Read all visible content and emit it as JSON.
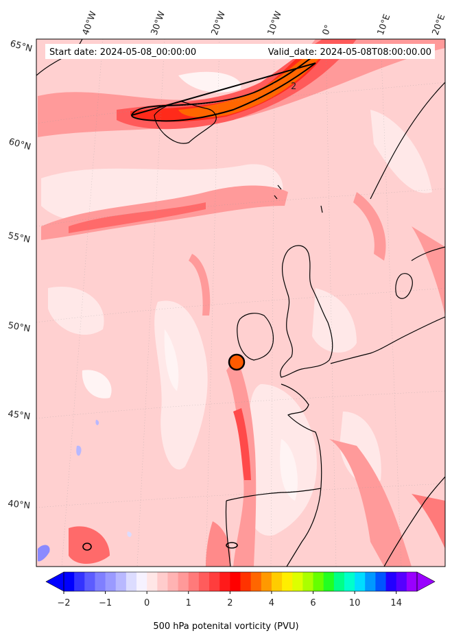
{
  "header": {
    "start_date": "Start date: 2024-05-08_00:00:00",
    "valid_date": "Valid_date: 2024-05-08T08:00:00.00"
  },
  "longitude_labels": [
    "40°W",
    "30°W",
    "20°W",
    "10°W",
    "0°",
    "10°E",
    "20°E"
  ],
  "latitude_labels": [
    "65°N",
    "60°N",
    "55°N",
    "50°N",
    "45°N",
    "40°N"
  ],
  "contour_label": "2",
  "colorbar": {
    "title": "500 hPa potenital vorticity (PVU)",
    "ticks": [
      "−2",
      "−1",
      "0",
      "1",
      "2",
      "4",
      "6",
      "10",
      "14"
    ],
    "colors": [
      "#0000ff",
      "#3333ff",
      "#5c5cff",
      "#7f7fff",
      "#9a9aff",
      "#b8b8ff",
      "#dcdcff",
      "#f6f2ff",
      "#ffe6e6",
      "#ffcccc",
      "#ffb3b3",
      "#ff9999",
      "#ff7a7a",
      "#ff5c5c",
      "#ff3d3d",
      "#ff1a1a",
      "#ff0000",
      "#ff3300",
      "#ff6600",
      "#ff9900",
      "#ffcc00",
      "#ffee00",
      "#ddff00",
      "#aaff00",
      "#66ff00",
      "#22ff22",
      "#00ff88",
      "#00ffcc",
      "#00ddff",
      "#0099ff",
      "#0055ff",
      "#2200ff",
      "#5500ff",
      "#9900ff"
    ]
  },
  "colors": {
    "background_pv": "#ffd0d0",
    "high_pv": "#ff2020",
    "land_outline": "#000000"
  }
}
